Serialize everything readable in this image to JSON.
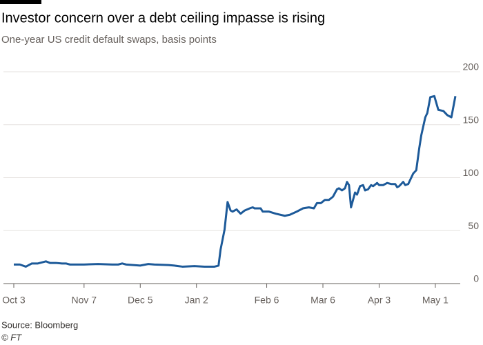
{
  "chart_data": {
    "type": "line",
    "title": "Investor concern over a debt ceiling impasse is rising",
    "subtitle": "One-year US credit default swaps, basis points",
    "source": "Source: Bloomberg",
    "credit": "© FT",
    "xlim": [
      0,
      220
    ],
    "xticks": [
      {
        "value": 0,
        "label": "Oct 3"
      },
      {
        "value": 35,
        "label": "Nov 7"
      },
      {
        "value": 63,
        "label": "Dec 5"
      },
      {
        "value": 91,
        "label": "Jan 2"
      },
      {
        "value": 126,
        "label": "Feb 6"
      },
      {
        "value": 154,
        "label": "Mar 6"
      },
      {
        "value": 182,
        "label": "Apr 3"
      },
      {
        "value": 210,
        "label": "May 1"
      }
    ],
    "ylim": [
      0,
      200
    ],
    "yticks": [
      0,
      50,
      100,
      150,
      200
    ],
    "grid": true,
    "series": [
      {
        "color": "#1d5a99",
        "x": [
          0,
          3,
          6,
          9,
          12,
          14,
          16,
          18,
          21,
          24,
          26,
          28,
          35,
          42,
          49,
          52,
          54,
          56,
          63,
          67,
          70,
          77,
          80,
          84,
          90,
          95,
          100,
          102,
          103,
          105,
          106.5,
          108,
          109,
          111,
          113,
          115,
          117.5,
          119,
          120,
          123,
          124,
          127,
          130.5,
          135,
          137.5,
          141,
          144,
          147,
          149.5,
          151,
          153,
          155,
          157,
          159,
          161,
          162,
          163.5,
          165,
          166,
          167,
          168,
          170,
          171,
          172.5,
          174,
          175,
          176.5,
          178,
          179,
          181,
          182,
          184,
          186,
          188,
          190,
          191,
          192,
          194,
          195,
          196.5,
          198,
          199,
          200.5,
          202,
          203,
          205,
          206,
          207.5,
          209.5,
          211.5,
          214,
          216,
          218,
          220
        ],
        "values": [
          18,
          18,
          16,
          19,
          19,
          20,
          21,
          19.5,
          19.5,
          19,
          19,
          18,
          18,
          18.5,
          18,
          18,
          19,
          18,
          17,
          18.5,
          18,
          17.5,
          17,
          16,
          16.5,
          16,
          16,
          17,
          32,
          51,
          77,
          69,
          68,
          70,
          66,
          69,
          71,
          72,
          71,
          71,
          68,
          68,
          66,
          64,
          65,
          68,
          71,
          72,
          71,
          76,
          76,
          79,
          79,
          82,
          89,
          90,
          88,
          90,
          96,
          93,
          72,
          86,
          84,
          92,
          93,
          88,
          89,
          93,
          92,
          95,
          93,
          93,
          95,
          94,
          94,
          91,
          92,
          96,
          93,
          94,
          100,
          104,
          107,
          128,
          140,
          157,
          161,
          176,
          177,
          164,
          163,
          159,
          157,
          177
        ]
      }
    ]
  }
}
